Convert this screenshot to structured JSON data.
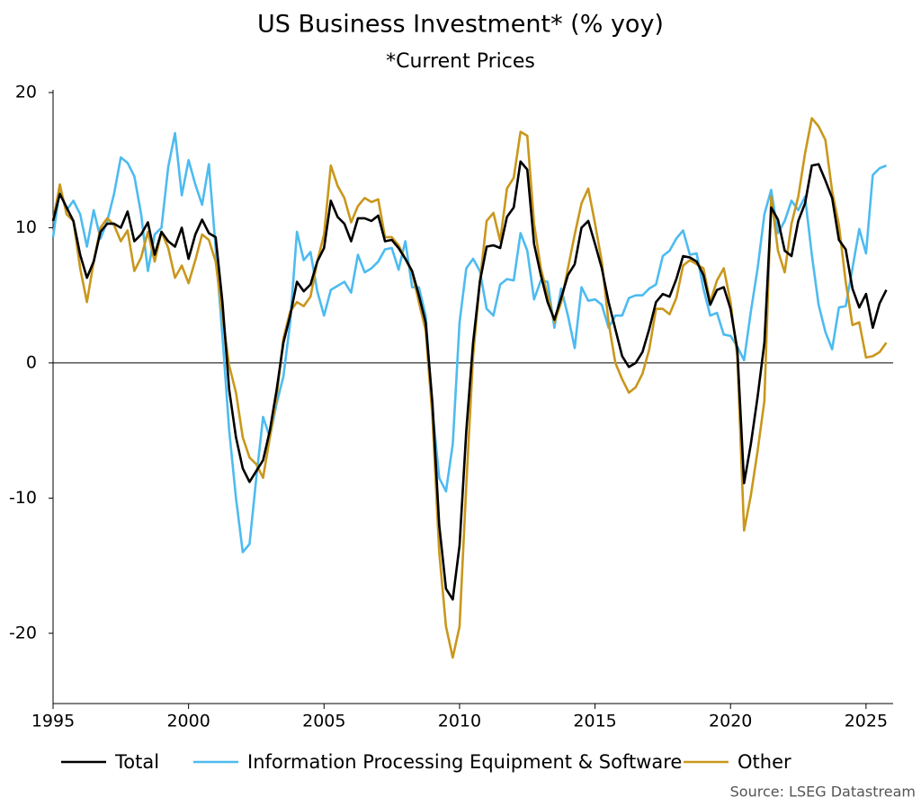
{
  "chart_data": {
    "type": "line",
    "title": "US Business Investment* (% yoy)",
    "subtitle": "*Current Prices",
    "source": "Source: LSEG Datastream",
    "x": [
      1995,
      1995.25,
      1995.5,
      1995.75,
      1996,
      1996.25,
      1996.5,
      1996.75,
      1997,
      1997.25,
      1997.5,
      1997.75,
      1998,
      1998.25,
      1998.5,
      1998.75,
      1999,
      1999.25,
      1999.5,
      1999.75,
      2000,
      2000.25,
      2000.5,
      2000.75,
      2001,
      2001.25,
      2001.5,
      2001.75,
      2002,
      2002.25,
      2002.5,
      2002.75,
      2003,
      2003.25,
      2003.5,
      2003.75,
      2004,
      2004.25,
      2004.5,
      2004.75,
      2005,
      2005.25,
      2005.5,
      2005.75,
      2006,
      2006.25,
      2006.5,
      2006.75,
      2007,
      2007.25,
      2007.5,
      2007.75,
      2008,
      2008.25,
      2008.5,
      2008.75,
      2009,
      2009.25,
      2009.5,
      2009.75,
      2010,
      2010.25,
      2010.5,
      2010.75,
      2011,
      2011.25,
      2011.5,
      2011.75,
      2012,
      2012.25,
      2012.5,
      2012.75,
      2013,
      2013.25,
      2013.5,
      2013.75,
      2014,
      2014.25,
      2014.5,
      2014.75,
      2015,
      2015.25,
      2015.5,
      2015.75,
      2016,
      2016.25,
      2016.5,
      2016.75,
      2017,
      2017.25,
      2017.5,
      2017.75,
      2018,
      2018.25,
      2018.5,
      2018.75,
      2019,
      2019.25,
      2019.5,
      2019.75,
      2020,
      2020.25,
      2020.5,
      2020.75,
      2021,
      2021.25,
      2021.5,
      2021.75,
      2022,
      2022.25,
      2022.5,
      2022.75,
      2023,
      2023.25,
      2023.5,
      2023.75,
      2024,
      2024.25,
      2024.5,
      2024.75,
      2025,
      2025.25,
      2025.5,
      2025.75
    ],
    "series": [
      {
        "name": "Total",
        "color": "#000000",
        "values": [
          10.5,
          12.5,
          11.5,
          10.5,
          8,
          6.3,
          7.5,
          9.7,
          10.3,
          10.3,
          10,
          11.2,
          9,
          9.5,
          10.4,
          8,
          9.7,
          9,
          8.6,
          10,
          7.7,
          9.5,
          10.6,
          9.6,
          9.3,
          4.5,
          -2,
          -5.5,
          -7.8,
          -8.8,
          -8,
          -7.2,
          -5,
          -2,
          1.5,
          3.5,
          6,
          5.3,
          5.8,
          7.5,
          8.5,
          12,
          10.8,
          10.3,
          9,
          10.7,
          10.7,
          10.5,
          10.9,
          9,
          9.1,
          8.5,
          7.7,
          6.8,
          5,
          3,
          -3,
          -12,
          -16.7,
          -17.5,
          -13.5,
          -5,
          1.5,
          6,
          8.6,
          8.7,
          8.5,
          10.8,
          11.5,
          14.9,
          14.3,
          8.8,
          6.5,
          4.5,
          3.2,
          4.8,
          6.5,
          7.3,
          10,
          10.5,
          8.8,
          7,
          4.5,
          2.5,
          0.5,
          -0.3,
          0,
          0.8,
          2.5,
          4.5,
          5.1,
          4.9,
          6.2,
          7.9,
          7.8,
          7.5,
          6.5,
          4.3,
          5.4,
          5.6,
          4,
          1,
          -8.9,
          -6,
          -2.5,
          1.5,
          11.5,
          10.6,
          8.3,
          7.9,
          10.5,
          11.8,
          14.6,
          14.7,
          13.5,
          12.2,
          9.1,
          8.4,
          5.5,
          4.1,
          5.1,
          2.6,
          4.4,
          5.4
        ]
      },
      {
        "name": "Information Processing Equipment & Software",
        "color": "#4dbbf0",
        "values": [
          9.3,
          12.9,
          11.3,
          12,
          11,
          8.6,
          11.3,
          9.2,
          10.5,
          12.5,
          15.2,
          14.8,
          13.8,
          11,
          6.8,
          9.5,
          10,
          14.5,
          17,
          12.4,
          15,
          13.2,
          11.7,
          14.7,
          8.5,
          2,
          -5,
          -10,
          -14,
          -13.4,
          -8.5,
          -4,
          -5.5,
          -3,
          -1,
          3,
          9.7,
          7.6,
          8.2,
          5.3,
          3.5,
          5.4,
          5.7,
          6,
          5.2,
          8,
          6.7,
          7,
          7.5,
          8.4,
          8.5,
          6.9,
          9,
          5.6,
          5.6,
          3.5,
          -3.5,
          -8.5,
          -9.5,
          -6,
          3,
          7,
          7.7,
          6.8,
          4,
          3.5,
          5.8,
          6.2,
          6.1,
          9.6,
          8.3,
          4.7,
          6.1,
          6,
          2.6,
          5.5,
          3.5,
          1.1,
          5.6,
          4.6,
          4.7,
          4.3,
          2.6,
          3.5,
          3.5,
          4.8,
          5,
          5,
          5.5,
          5.8,
          7.9,
          8.3,
          9.2,
          9.8,
          8,
          8.1,
          5.5,
          3.5,
          3.7,
          2.1,
          2,
          1.2,
          0.2,
          3.8,
          7,
          11,
          12.8,
          9.6,
          10.5,
          12,
          11.3,
          12.3,
          8,
          4.3,
          2.3,
          1,
          4.1,
          4.2,
          7,
          9.9,
          8.1,
          13.9,
          14.4,
          14.6
        ]
      },
      {
        "name": "Other",
        "color": "#c9971c",
        "values": [
          10.5,
          13.2,
          11,
          10.5,
          7,
          4.5,
          7.5,
          10,
          10.7,
          10.2,
          9,
          9.8,
          6.8,
          7.8,
          9.7,
          7.5,
          9.7,
          8.5,
          6.3,
          7.2,
          5.9,
          7.6,
          9.5,
          9.1,
          7.5,
          3.5,
          -0.2,
          -2.2,
          -5.5,
          -7,
          -7.5,
          -8.5,
          -5.5,
          -2.5,
          1.8,
          3.8,
          4.5,
          4.2,
          4.9,
          7.5,
          9.5,
          14.6,
          13.1,
          12.2,
          10.4,
          11.6,
          12.2,
          11.9,
          12.1,
          9.3,
          9.3,
          8.7,
          7.7,
          6.7,
          4.5,
          2.4,
          -4,
          -14,
          -19.5,
          -21.8,
          -19.5,
          -9,
          0.5,
          6,
          10.5,
          11.1,
          9,
          12.9,
          13.7,
          17.1,
          16.8,
          10.3,
          7,
          5,
          3,
          4.5,
          7,
          9.5,
          11.8,
          12.9,
          10.3,
          7.5,
          3,
          0,
          -1.2,
          -2.2,
          -1.8,
          -0.8,
          1,
          4,
          4,
          3.6,
          4.8,
          7.2,
          7.6,
          7.3,
          7,
          4.5,
          6.1,
          7,
          4.5,
          0.5,
          -12.4,
          -9.8,
          -6.5,
          -2.8,
          12.3,
          8.3,
          6.7,
          10.3,
          12.3,
          15.5,
          18.1,
          17.5,
          16.5,
          12.7,
          10.2,
          6,
          2.8,
          3,
          0.4,
          0.5,
          0.8,
          1.5
        ]
      }
    ],
    "xlim": [
      1995,
      2026
    ],
    "xticks": [
      1995,
      2000,
      2005,
      2010,
      2015,
      2020,
      2025
    ],
    "ylim": [
      -25,
      20
    ],
    "yticks": [
      20,
      10,
      0,
      -10,
      -20
    ],
    "grid": false
  }
}
